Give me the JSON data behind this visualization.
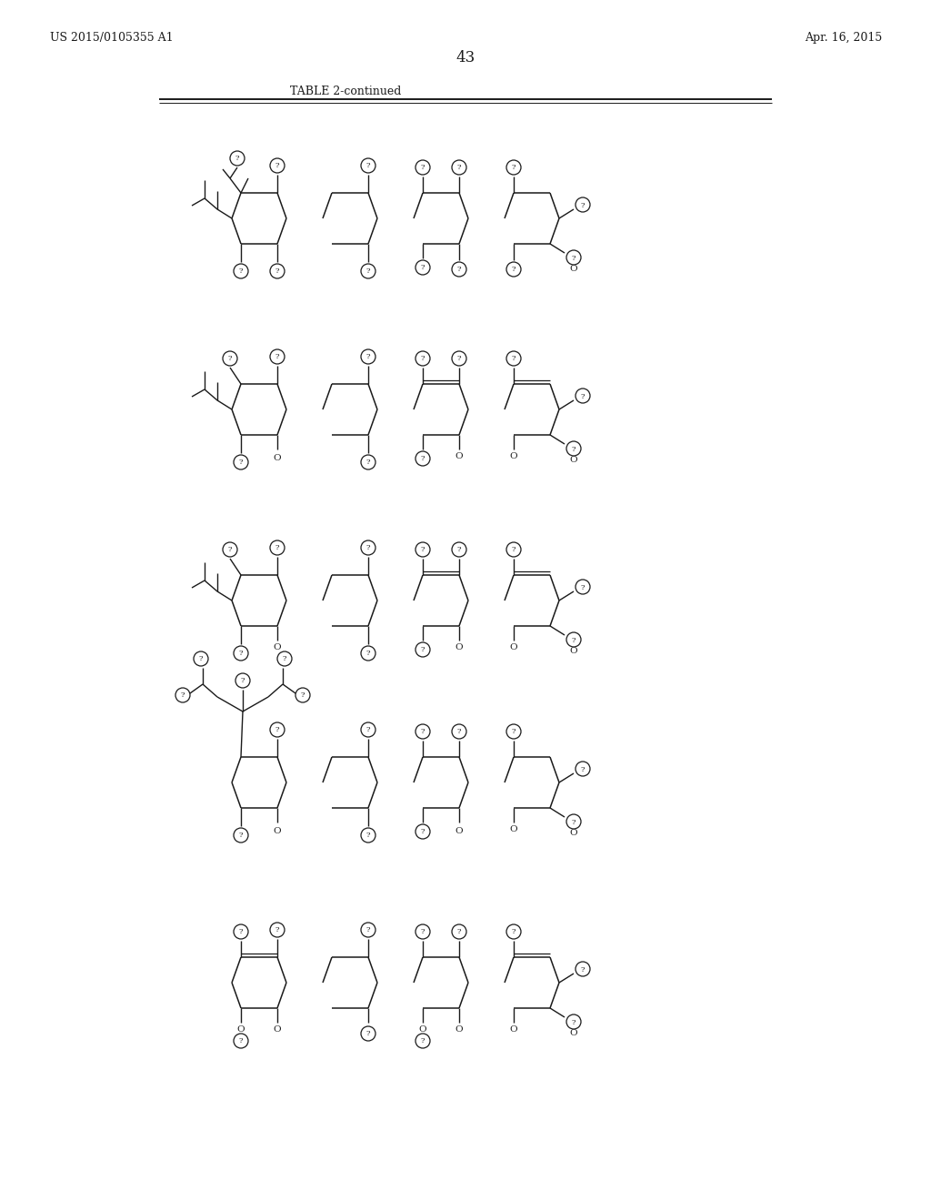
{
  "patent_number": "US 2015/0105355 A1",
  "date": "Apr. 16, 2015",
  "page_number": "43",
  "table_title": "TABLE 2-continued",
  "bg": "#ffffff",
  "lc": "#1a1a1a",
  "tc": "#1a1a1a"
}
